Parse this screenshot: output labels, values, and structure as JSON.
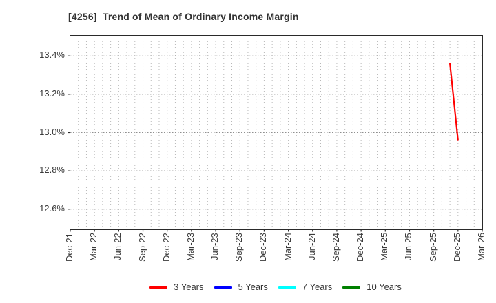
{
  "title": {
    "text": "[4256]  Trend of Mean of Ordinary Income Margin",
    "color": "#333333"
  },
  "chart_data": {
    "type": "line",
    "title": "[4256]  Trend of Mean of Ordinary Income Margin",
    "xlabel": "",
    "ylabel": "",
    "x_tick_labels": [
      "Dec-21",
      "Mar-22",
      "Jun-22",
      "Sep-22",
      "Dec-22",
      "Mar-23",
      "Jun-23",
      "Sep-23",
      "Dec-23",
      "Mar-24",
      "Jun-24",
      "Sep-24",
      "Dec-24",
      "Mar-25",
      "Jun-25",
      "Sep-25",
      "Dec-25",
      "Mar-26"
    ],
    "x_minor_gridline_unit": "month",
    "y_ticks": [
      12.6,
      12.8,
      13.0,
      13.2,
      13.4
    ],
    "y_tick_suffix": "%",
    "ylim": [
      12.495,
      13.505
    ],
    "grid": {
      "vertical": "dotted per month",
      "horizontal": "dotted at y ticks"
    },
    "legend_position": "bottom-center",
    "series": [
      {
        "name": "3 Years",
        "color": "#ff0000",
        "points": [
          {
            "x": "Nov-25",
            "y": 13.36
          },
          {
            "x": "Dec-25",
            "y": 12.96
          }
        ]
      },
      {
        "name": "5 Years",
        "color": "#0000ff",
        "points": []
      },
      {
        "name": "7 Years",
        "color": "#00ffff",
        "points": []
      },
      {
        "name": "10 Years",
        "color": "#008000",
        "points": []
      }
    ],
    "colors": {
      "axis_border": "#2a2a2a",
      "grid_horizontal": "#8f8f8f",
      "grid_vertical": "#b8b8b8",
      "tick_label": "#3a3a3a",
      "title": "#333333"
    }
  }
}
